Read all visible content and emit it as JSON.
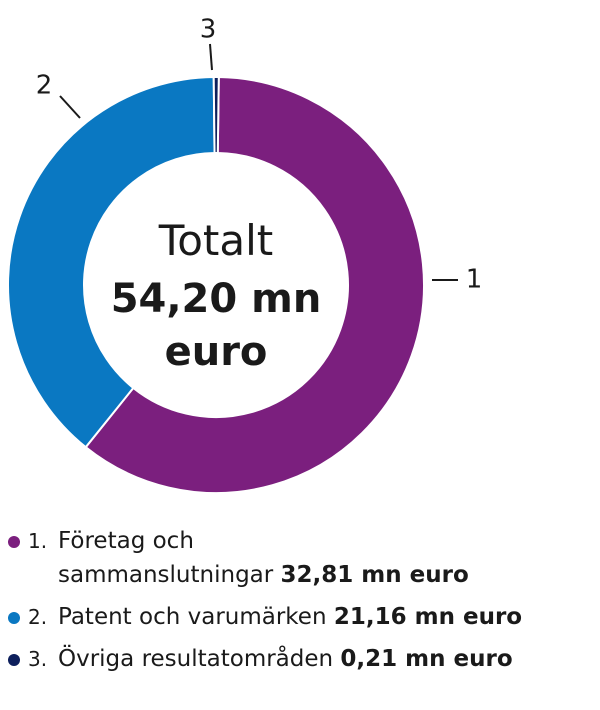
{
  "chart_data": {
    "type": "pie",
    "donut": true,
    "center_label": {
      "line1": "Totalt",
      "line2": "54,20 mn",
      "line3": "euro"
    },
    "slices": [
      {
        "label": "1",
        "name": "Företag och sammanslutningar",
        "value": 32.81,
        "value_text": "32,81 mn euro",
        "color": "#7b1f7e"
      },
      {
        "label": "2",
        "name": "Patent och varumärken",
        "value": 21.16,
        "value_text": "21,16 mn euro",
        "color": "#0a78c2"
      },
      {
        "label": "3",
        "name": "Övriga resultatområden",
        "value": 0.21,
        "value_text": "0,21 mn euro",
        "color": "#0d1f5c"
      }
    ]
  },
  "legend": {
    "items": [
      {
        "num": "1.",
        "text_a": "Företag och",
        "text_b": "sammanslutningar",
        "value": "32,81 mn euro"
      },
      {
        "num": "2.",
        "text_a": "Patent och varumärken",
        "value": "21,16 mn euro"
      },
      {
        "num": "3.",
        "text_a": "Övriga resultatområden",
        "value": "0,21 mn euro"
      }
    ]
  }
}
